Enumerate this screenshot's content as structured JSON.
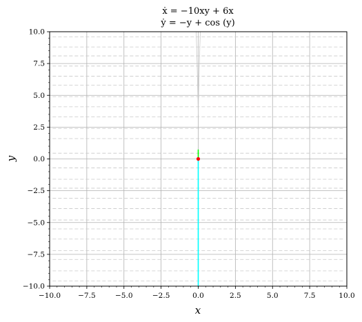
{
  "chart_data": {
    "type": "line",
    "title": [
      "ẋ = −10xy + 6x",
      "ẏ = −y + cos (y)"
    ],
    "xlabel": "x",
    "ylabel": "y",
    "xlim": [
      -10,
      10
    ],
    "ylim": [
      -10,
      10
    ],
    "xticks": [
      -10,
      -7.5,
      -5,
      -2.5,
      0,
      2.5,
      5,
      7.5,
      10
    ],
    "yticks": [
      -10,
      -7.5,
      -5,
      -2.5,
      0,
      2.5,
      5,
      7.5,
      10
    ],
    "xtick_labels": [
      "−10.0",
      "−7.5",
      "−5.0",
      "−2.5",
      "0.0",
      "2.5",
      "5.0",
      "7.5",
      "10.0"
    ],
    "ytick_labels": [
      "−10.0",
      "−7.5",
      "−5.0",
      "−2.5",
      "0.0",
      "2.5",
      "5.0",
      "7.5",
      "10.0"
    ],
    "grid": true,
    "streamlines": {
      "color": "#c8c8c8",
      "y_levels": [
        -9.6,
        -8.8,
        -7.9,
        -7.2,
        -6.3,
        -5.5,
        -4.8,
        -3.9,
        -3.1,
        -2.3,
        -1.6,
        -0.7,
        0.45,
        1.6,
        2.4,
        3.3,
        4.1,
        4.9,
        5.8,
        6.5,
        7.3,
        8.1,
        8.8,
        9.6
      ]
    },
    "series": [
      {
        "color": "#00ffff",
        "points": [
          [
            0,
            0
          ],
          [
            0,
            -10
          ]
        ]
      },
      {
        "color": "#00ff00",
        "points": [
          [
            0,
            0
          ],
          [
            0,
            0.74
          ]
        ]
      }
    ],
    "equilibria": [
      {
        "x": 0,
        "y": 0,
        "color": "#ff0000"
      }
    ]
  }
}
